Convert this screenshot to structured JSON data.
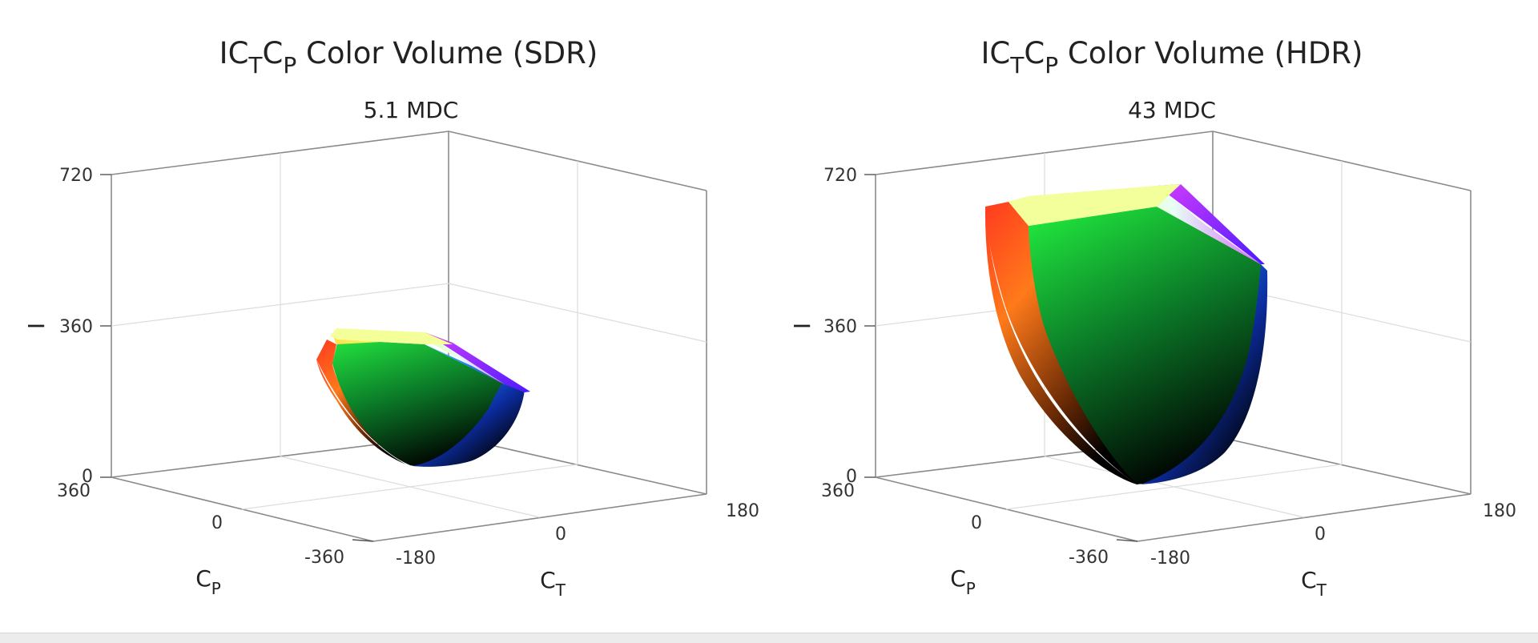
{
  "figure_label": "",
  "chart_data": [
    {
      "type": "3d-color-volume",
      "title_main": "IC",
      "title_sub1": "T",
      "title_mid": "C",
      "title_sub2": "P",
      "title_rest": " Color Volume (SDR)",
      "subtitle": "5.1 MDC",
      "volume_mdc": 5.1,
      "z_label": "I",
      "x_label_main": "C",
      "x_label_sub": "T",
      "y_label_main": "C",
      "y_label_sub": "P",
      "z_ticks": [
        "0",
        "360",
        "720"
      ],
      "x_ticks": [
        "-180",
        "0",
        "180"
      ],
      "y_ticks": [
        "360",
        "0",
        "-360"
      ],
      "z_range": [
        0,
        720
      ],
      "ct_range": [
        -180,
        180
      ],
      "cp_range": [
        -360,
        360
      ],
      "peak_I": 340,
      "grid": true,
      "colors": {
        "top_yellow": "#e8ff7a",
        "cyan": "#2fe0ff",
        "green": "#16c93a",
        "blue": "#1a1aff",
        "magenta": "#c93cff",
        "red": "#ff3a1f",
        "black": "#000000"
      }
    },
    {
      "type": "3d-color-volume",
      "title_main": "IC",
      "title_sub1": "T",
      "title_mid": "C",
      "title_sub2": "P",
      "title_rest": " Color Volume (HDR)",
      "subtitle": "43 MDC",
      "volume_mdc": 43,
      "z_label": "I",
      "x_label_main": "C",
      "x_label_sub": "T",
      "y_label_main": "C",
      "y_label_sub": "P",
      "z_ticks": [
        "0",
        "360",
        "720"
      ],
      "x_ticks": [
        "-180",
        "0",
        "180"
      ],
      "y_ticks": [
        "360",
        "0",
        "-360"
      ],
      "z_range": [
        0,
        720
      ],
      "ct_range": [
        -180,
        180
      ],
      "cp_range": [
        -360,
        360
      ],
      "peak_I": 720,
      "grid": true,
      "colors": {
        "top_yellow": "#e8ff7a",
        "cyan": "#2fe0ff",
        "green": "#16c93a",
        "blue": "#1a1aff",
        "magenta": "#c93cff",
        "red": "#ff3a1f",
        "black": "#000000"
      }
    }
  ]
}
